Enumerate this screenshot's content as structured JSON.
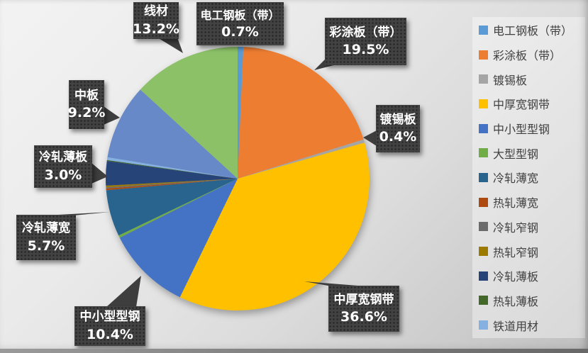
{
  "chart_data": {
    "type": "pie",
    "title": "",
    "legend_position": "right",
    "start_angle_deg": 0,
    "direction": "clockwise",
    "slices": [
      {
        "label": "电工钢板（带）",
        "value": 0.7,
        "color": "#5B9BD5",
        "in_legend": true
      },
      {
        "label": "彩涂板（带）",
        "value": 19.5,
        "color": "#ED7D31",
        "in_legend": true
      },
      {
        "label": "镀锡板",
        "value": 0.4,
        "color": "#A5A5A5",
        "in_legend": true
      },
      {
        "label": "中厚宽钢带",
        "value": 36.6,
        "color": "#FFC000",
        "in_legend": true
      },
      {
        "label": "中小型型钢",
        "value": 10.4,
        "color": "#4472C4",
        "in_legend": true
      },
      {
        "label": "大型型钢",
        "value": 0.3,
        "color": "#70AD47",
        "in_legend": true
      },
      {
        "label": "冷轧薄宽",
        "value": 5.7,
        "color": "#28648E",
        "in_legend": true
      },
      {
        "label": "热轧薄宽",
        "value": 0.2,
        "color": "#AE4A10",
        "in_legend": true
      },
      {
        "label": "冷轧窄钢",
        "value": 0.15,
        "color": "#6B6B6B",
        "in_legend": true
      },
      {
        "label": "热轧窄钢",
        "value": 0.2,
        "color": "#9C7A00",
        "in_legend": true
      },
      {
        "label": "冷轧薄板",
        "value": 3.0,
        "color": "#264478",
        "in_legend": true
      },
      {
        "label": "热轧薄板",
        "value": 0.1,
        "color": "#44682A",
        "in_legend": true
      },
      {
        "label": "铁道用材",
        "value": 0.35,
        "color": "#84B1E2",
        "in_legend": true
      },
      {
        "label": "中板",
        "value": 9.2,
        "color": "#6889C8",
        "in_legend": false
      },
      {
        "label": "线材",
        "value": 13.2,
        "color": "#8CC168",
        "in_legend": false
      }
    ],
    "callouts": [
      {
        "name": "线材",
        "pct": "13.2%"
      },
      {
        "name": "电工钢板（带）",
        "pct": "0.7%"
      },
      {
        "name": "彩涂板（带）",
        "pct": "19.5%"
      },
      {
        "name": "镀锡板",
        "pct": "0.4%"
      },
      {
        "name": "中板",
        "pct": "9.2%"
      },
      {
        "name": "冷轧薄板",
        "pct": "3.0%"
      },
      {
        "name": "冷轧薄宽",
        "pct": "5.7%"
      },
      {
        "name": "中小型型钢",
        "pct": "10.4%"
      },
      {
        "name": "中厚宽钢带",
        "pct": "36.6%"
      }
    ]
  },
  "colors": {
    "callout_bg": "#424242",
    "callout_text": "#FFFFFF",
    "legend_text": "#404040"
  }
}
